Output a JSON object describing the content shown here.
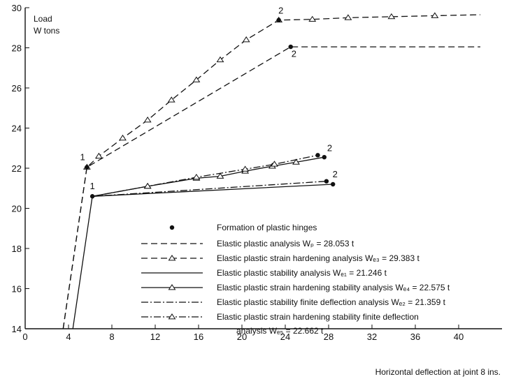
{
  "chart_data": {
    "type": "line",
    "title": "",
    "xlabel": "Horizontal deflection at joint 8 ins.",
    "ylabel": "Load W tons",
    "ylabel_lines": [
      "Load",
      "W tons"
    ],
    "xlim": [
      0,
      44
    ],
    "ylim": [
      14,
      30
    ],
    "xticks": [
      0,
      4,
      8,
      12,
      16,
      20,
      24,
      28,
      32,
      36,
      40
    ],
    "yticks": [
      14,
      16,
      18,
      20,
      22,
      24,
      26,
      28,
      30
    ],
    "grid": false,
    "legend_position": "bottom-right",
    "legend_hinge_label": "Formation of plastic hinges",
    "series": [
      {
        "name": "Elastic plastic analysis Wp = 28.053 t",
        "legend_lines": [
          "Elastic plastic analysis Wₚ = 28.053 t"
        ],
        "style": "dashed",
        "markers": false,
        "points": [
          [
            3.5,
            14
          ],
          [
            5.7,
            22.05
          ],
          [
            24.5,
            28.05
          ],
          [
            42,
            28.05
          ]
        ]
      },
      {
        "name": "Elastic plastic strain hardening analysis Wf3 = 29.383 t",
        "legend_lines": [
          "Elastic plastic strain hardening analysis Wₑ₃ = 29.383 t"
        ],
        "style": "dashed",
        "markers": true,
        "points": [
          [
            3.5,
            14
          ],
          [
            5.7,
            22.05
          ],
          [
            6.8,
            22.6
          ],
          [
            9,
            23.5
          ],
          [
            11.3,
            24.4
          ],
          [
            13.5,
            25.4
          ],
          [
            15.8,
            26.4
          ],
          [
            18,
            27.4
          ],
          [
            20.4,
            28.4
          ],
          [
            23.4,
            29.38
          ],
          [
            26.5,
            29.42
          ],
          [
            29.8,
            29.5
          ],
          [
            33.8,
            29.55
          ],
          [
            37.8,
            29.6
          ],
          [
            42,
            29.65
          ]
        ]
      },
      {
        "name": "Elastic plastic stability analysis Wf1 = 21.246 t",
        "legend_lines": [
          "Elastic plastic stability analysis Wₑ₁ = 21.246 t"
        ],
        "style": "solid",
        "markers": false,
        "points": [
          [
            4.4,
            14
          ],
          [
            6.2,
            20.6
          ],
          [
            28.4,
            21.2
          ]
        ]
      },
      {
        "name": "Elastic plastic strain hardening stability analysis Wf4 = 22.575 t",
        "legend_lines": [
          "Elastic plastic strain hardening stability analysis Wₑ₄ = 22.575 t"
        ],
        "style": "solid",
        "markers": true,
        "points": [
          [
            6.2,
            20.6
          ],
          [
            11.3,
            21.1
          ],
          [
            15.8,
            21.5
          ],
          [
            18,
            21.6
          ],
          [
            20.3,
            21.85
          ],
          [
            22.8,
            22.1
          ],
          [
            25,
            22.3
          ],
          [
            27.6,
            22.55
          ]
        ]
      },
      {
        "name": "Elastic plastic stability finite deflection analysis Wf2 = 21.359 t",
        "legend_lines": [
          "Elastic plastic stability finite deflection  analysis Wₑ₂ = 21.359 t"
        ],
        "style": "dashdot",
        "markers": false,
        "points": [
          [
            6.2,
            20.6
          ],
          [
            27.8,
            21.35
          ]
        ]
      },
      {
        "name": "Elastic plastic strain hardening stability finite deflection analysis Wf5 = 22.662 t",
        "legend_lines": [
          "Elastic plastic strain hardening stability finite deflection",
          "analysis Wₑ₅ = 22.662 t"
        ],
        "style": "dashdot",
        "markers": true,
        "points": [
          [
            6.2,
            20.6
          ],
          [
            11.3,
            21.1
          ],
          [
            15.8,
            21.55
          ],
          [
            20.3,
            21.95
          ],
          [
            23,
            22.2
          ],
          [
            27,
            22.65
          ]
        ]
      }
    ],
    "hinges": [
      {
        "x": 5.7,
        "y": 22.05
      },
      {
        "x": 6.2,
        "y": 20.6
      },
      {
        "x": 23.4,
        "y": 29.38
      },
      {
        "x": 24.5,
        "y": 28.05
      },
      {
        "x": 27,
        "y": 22.65
      },
      {
        "x": 27.6,
        "y": 22.55
      },
      {
        "x": 27.8,
        "y": 21.35
      },
      {
        "x": 28.4,
        "y": 21.2
      }
    ],
    "annotations": [
      {
        "text": "1",
        "x": 5.3,
        "y": 22.4
      },
      {
        "text": "1",
        "x": 6.2,
        "y": 20.95
      },
      {
        "text": "2",
        "x": 23.6,
        "y": 29.7
      },
      {
        "text": "2",
        "x": 24.8,
        "y": 27.55
      },
      {
        "text": "2",
        "x": 28.1,
        "y": 22.85
      },
      {
        "text": "2",
        "x": 28.6,
        "y": 21.55
      }
    ]
  }
}
